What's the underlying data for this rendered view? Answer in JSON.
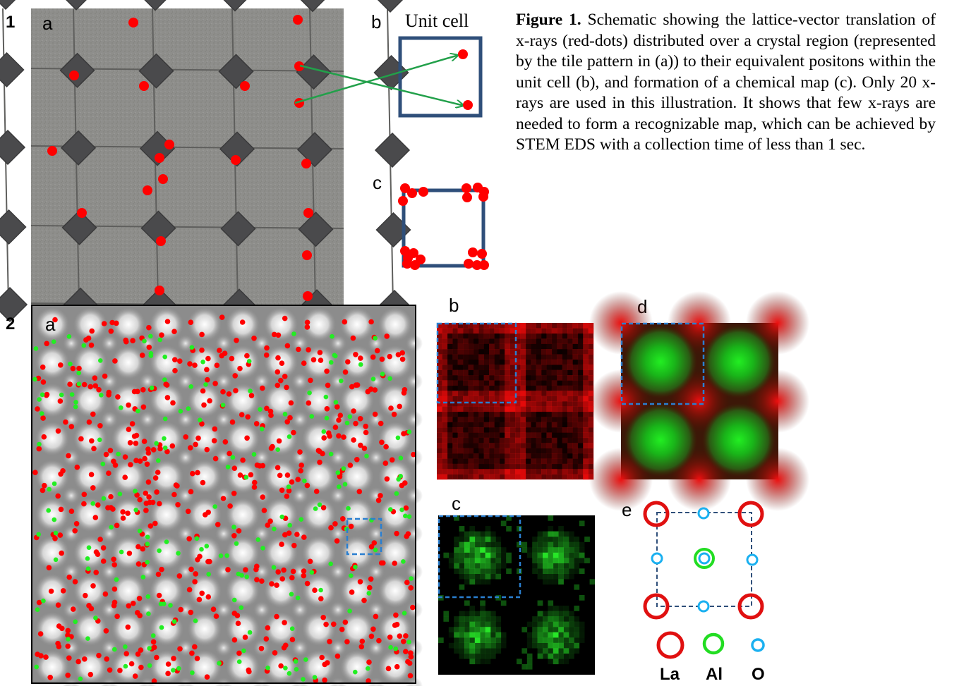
{
  "figure1": {
    "number": "1",
    "panel_labels": {
      "a": "a",
      "b": "b",
      "c": "c"
    },
    "unit_cell_label": "Unit cell",
    "caption_title": "Figure 1.",
    "caption_body": "Schematic showing the lattice-vector translation of x-rays (red-dots) distributed over a crystal region (represented by the tile pattern in (a)) to their equivalent positons within the unit cell (b), and formation of a chemical map (c). Only 20 x-rays are used in this illustration. It shows that few x-rays are needed to form a recognizable map, which can be achieved by STEM EDS with a collection time of less than 1 sec."
  },
  "figure2": {
    "number": "2",
    "panel_labels": {
      "a": "a",
      "b": "b",
      "c": "c",
      "d": "d",
      "e": "e"
    },
    "legend": [
      {
        "label": "La",
        "color": "#e01010"
      },
      {
        "label": "Al",
        "color": "#22dd22"
      },
      {
        "label": "O",
        "color": "#1ab0f0"
      }
    ]
  },
  "colors": {
    "xray_red": "#ff0000",
    "xray_green": "#22ee22",
    "unit_cell_blue": "#2f4f7a",
    "arrow_green": "#22a04a",
    "dash_blue": "#2a7fd0"
  }
}
